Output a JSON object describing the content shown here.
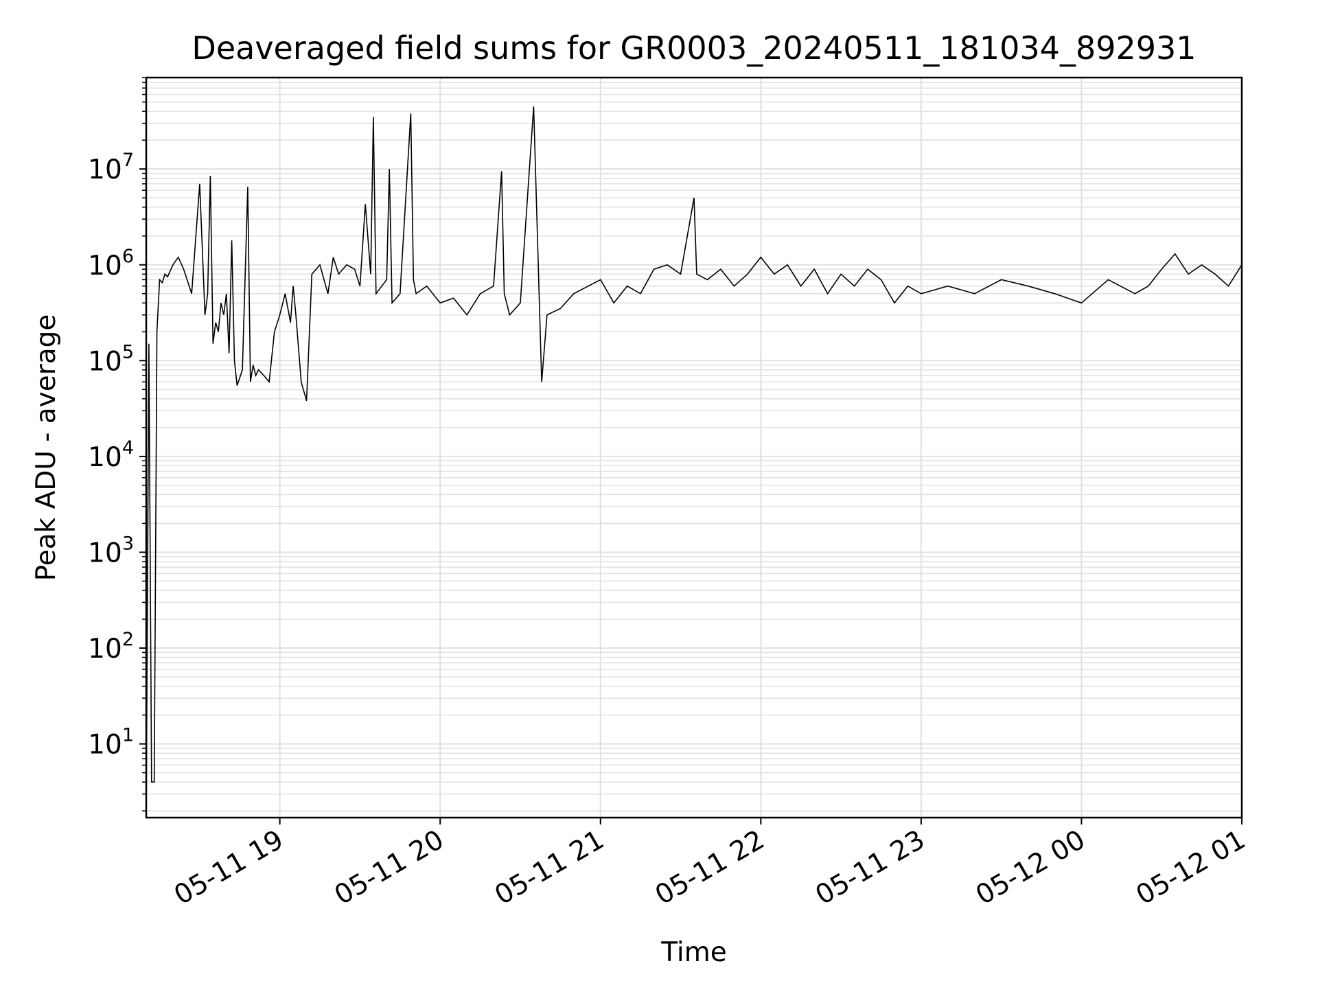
{
  "chart_data": {
    "type": "line",
    "title": "Deaveraged field sums for GR0003_20240511_181034_892931",
    "xlabel": "Time",
    "ylabel": "Peak ADU - average",
    "yscale": "log",
    "ylim": [
      1.7,
      90000000
    ],
    "xlim": [
      "2024-05-11 18:10",
      "2024-05-12 01:00"
    ],
    "grid": true,
    "grid_minor": true,
    "line_color": "#000000",
    "grid_color": "#e0e0e0",
    "x_ticks": [
      {
        "value": "2024-05-11 19:00",
        "label": "05-11 19"
      },
      {
        "value": "2024-05-11 20:00",
        "label": "05-11 20"
      },
      {
        "value": "2024-05-11 21:00",
        "label": "05-11 21"
      },
      {
        "value": "2024-05-11 22:00",
        "label": "05-11 22"
      },
      {
        "value": "2024-05-11 23:00",
        "label": "05-11 23"
      },
      {
        "value": "2024-05-12 00:00",
        "label": "05-12 00"
      },
      {
        "value": "2024-05-12 01:00",
        "label": "05-12 01"
      }
    ],
    "y_ticks": [
      {
        "value": 10,
        "base": "10",
        "exp": "1"
      },
      {
        "value": 100,
        "base": "10",
        "exp": "2"
      },
      {
        "value": 1000,
        "base": "10",
        "exp": "3"
      },
      {
        "value": 10000,
        "base": "10",
        "exp": "4"
      },
      {
        "value": 100000,
        "base": "10",
        "exp": "5"
      },
      {
        "value": 1000000,
        "base": "10",
        "exp": "6"
      },
      {
        "value": 10000000,
        "base": "10",
        "exp": "7"
      }
    ],
    "series": [
      {
        "x": [
          "2024-05-11 18:10",
          "2024-05-11 18:11",
          "2024-05-11 18:12",
          "2024-05-11 18:13",
          "2024-05-11 18:14",
          "2024-05-11 18:15",
          "2024-05-11 18:16",
          "2024-05-11 18:17",
          "2024-05-11 18:18",
          "2024-05-11 18:20",
          "2024-05-11 18:22",
          "2024-05-11 18:24",
          "2024-05-11 18:27",
          "2024-05-11 18:30",
          "2024-05-11 18:32",
          "2024-05-11 18:33",
          "2024-05-11 18:34",
          "2024-05-11 18:35",
          "2024-05-11 18:36",
          "2024-05-11 18:37",
          "2024-05-11 18:38",
          "2024-05-11 18:39",
          "2024-05-11 18:40",
          "2024-05-11 18:41",
          "2024-05-11 18:42",
          "2024-05-11 18:43",
          "2024-05-11 18:44",
          "2024-05-11 18:46",
          "2024-05-11 18:48",
          "2024-05-11 18:49",
          "2024-05-11 18:50",
          "2024-05-11 18:51",
          "2024-05-11 18:52",
          "2024-05-11 18:54",
          "2024-05-11 18:56",
          "2024-05-11 18:58",
          "2024-05-11 19:00",
          "2024-05-11 19:02",
          "2024-05-11 19:04",
          "2024-05-11 19:05",
          "2024-05-11 19:06",
          "2024-05-11 19:08",
          "2024-05-11 19:10",
          "2024-05-11 19:12",
          "2024-05-11 19:15",
          "2024-05-11 19:18",
          "2024-05-11 19:20",
          "2024-05-11 19:22",
          "2024-05-11 19:25",
          "2024-05-11 19:28",
          "2024-05-11 19:30",
          "2024-05-11 19:32",
          "2024-05-11 19:34",
          "2024-05-11 19:35",
          "2024-05-11 19:36",
          "2024-05-11 19:40",
          "2024-05-11 19:41",
          "2024-05-11 19:42",
          "2024-05-11 19:45",
          "2024-05-11 19:49",
          "2024-05-11 19:50",
          "2024-05-11 19:51",
          "2024-05-11 19:55",
          "2024-05-11 20:00",
          "2024-05-11 20:05",
          "2024-05-11 20:10",
          "2024-05-11 20:15",
          "2024-05-11 20:20",
          "2024-05-11 20:23",
          "2024-05-11 20:24",
          "2024-05-11 20:26",
          "2024-05-11 20:30",
          "2024-05-11 20:35",
          "2024-05-11 20:38",
          "2024-05-11 20:40",
          "2024-05-11 20:45",
          "2024-05-11 20:50",
          "2024-05-11 21:00",
          "2024-05-11 21:05",
          "2024-05-11 21:10",
          "2024-05-11 21:15",
          "2024-05-11 21:20",
          "2024-05-11 21:25",
          "2024-05-11 21:30",
          "2024-05-11 21:35",
          "2024-05-11 21:36",
          "2024-05-11 21:40",
          "2024-05-11 21:45",
          "2024-05-11 21:50",
          "2024-05-11 21:55",
          "2024-05-11 22:00",
          "2024-05-11 22:05",
          "2024-05-11 22:10",
          "2024-05-11 22:15",
          "2024-05-11 22:20",
          "2024-05-11 22:25",
          "2024-05-11 22:30",
          "2024-05-11 22:35",
          "2024-05-11 22:40",
          "2024-05-11 22:45",
          "2024-05-11 22:50",
          "2024-05-11 22:55",
          "2024-05-11 23:00",
          "2024-05-11 23:10",
          "2024-05-11 23:20",
          "2024-05-11 23:30",
          "2024-05-11 23:40",
          "2024-05-11 23:50",
          "2024-05-12 00:00",
          "2024-05-12 00:10",
          "2024-05-12 00:20",
          "2024-05-12 00:25",
          "2024-05-12 00:30",
          "2024-05-12 00:35",
          "2024-05-12 00:40",
          "2024-05-12 00:45",
          "2024-05-12 00:50",
          "2024-05-12 00:55",
          "2024-05-12 01:00"
        ],
        "y": [
          1.8,
          150000,
          4,
          4,
          200000,
          700000,
          650000,
          800000,
          750000,
          1000000,
          1200000,
          900000,
          500000,
          7000000,
          300000,
          500000,
          8500000,
          150000,
          250000,
          200000,
          400000,
          300000,
          500000,
          120000,
          1800000,
          100000,
          55000,
          80000,
          6500000,
          60000,
          90000,
          70000,
          80000,
          70000,
          60000,
          200000,
          300000,
          500000,
          250000,
          600000,
          300000,
          60000,
          38000,
          800000,
          1000000,
          500000,
          1200000,
          800000,
          1000000,
          900000,
          600000,
          4300000,
          800000,
          35000000,
          500000,
          700000,
          10000000,
          400000,
          500000,
          38000000,
          700000,
          500000,
          600000,
          400000,
          450000,
          300000,
          500000,
          600000,
          9500000,
          500000,
          300000,
          400000,
          45000000,
          60000,
          300000,
          350000,
          500000,
          700000,
          400000,
          600000,
          500000,
          900000,
          1000000,
          800000,
          5000000,
          800000,
          700000,
          900000,
          600000,
          800000,
          1200000,
          800000,
          1000000,
          600000,
          900000,
          500000,
          800000,
          600000,
          900000,
          700000,
          400000,
          600000,
          500000,
          600000,
          500000,
          700000,
          600000,
          500000,
          400000,
          700000,
          500000,
          600000,
          900000,
          1300000,
          800000,
          1000000,
          800000,
          600000,
          1000000
        ]
      }
    ]
  }
}
